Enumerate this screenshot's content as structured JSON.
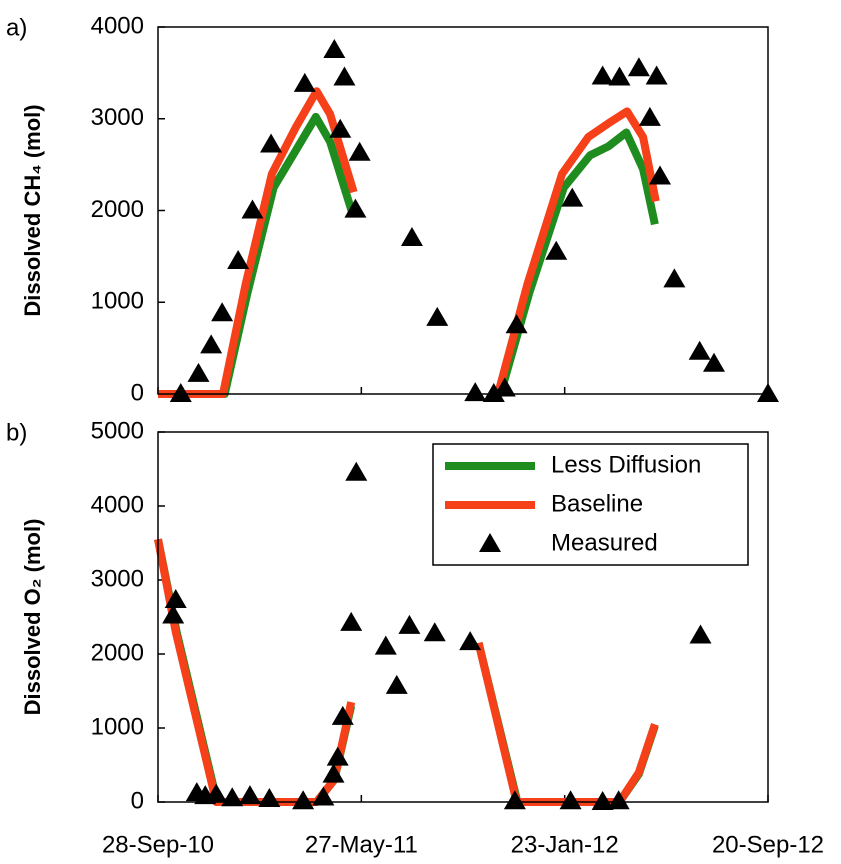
{
  "chart_data": [
    {
      "type": "line",
      "panel_label": "a)",
      "ylabel": "Dissolved CH₄ (mol)",
      "xlim": [
        "2010-09-28",
        "2012-09-20"
      ],
      "xticks": [
        "2010-09-28",
        "2011-05-27",
        "2012-01-23",
        "2012-09-20"
      ],
      "ylim": [
        0,
        4000
      ],
      "yticks": [
        0,
        1000,
        2000,
        3000,
        4000
      ],
      "legend": false,
      "series": [
        {
          "name": "Less Diffusion",
          "color": "#1e8c1e",
          "mode": "line",
          "x": [
            "2010-09-28",
            "2010-12-16",
            "2011-01-12",
            "2011-02-12",
            "2011-03-10",
            "2011-04-03",
            "2011-04-20",
            "2011-05-17",
            null,
            "2011-11-08",
            "2011-12-12",
            "2012-01-22",
            "2012-02-22",
            "2012-03-15",
            "2012-04-05",
            "2012-04-25",
            "2012-05-09"
          ],
          "values": [
            0,
            0,
            1100,
            2250,
            2650,
            3020,
            2750,
            1950,
            null,
            0,
            1100,
            2250,
            2600,
            2700,
            2850,
            2450,
            1850
          ]
        },
        {
          "name": "Baseline",
          "color": "#f5401a",
          "mode": "line",
          "x": [
            "2010-09-28",
            "2010-12-14",
            "2011-01-10",
            "2011-02-10",
            "2011-03-10",
            "2011-04-04",
            "2011-04-20",
            "2011-05-18",
            null,
            "2011-11-05",
            "2011-12-10",
            "2012-01-20",
            "2012-02-20",
            "2012-03-15",
            "2012-04-06",
            "2012-04-25",
            "2012-05-10"
          ],
          "values": [
            0,
            0,
            1200,
            2400,
            2900,
            3300,
            3050,
            2200,
            null,
            0,
            1200,
            2400,
            2800,
            2950,
            3080,
            2800,
            2100
          ]
        },
        {
          "name": "Measured",
          "color": "#000000",
          "mode": "markers",
          "x": [
            "2010-10-25",
            "2010-11-15",
            "2010-11-30",
            "2010-12-13",
            "2011-01-01",
            "2011-01-18",
            "2011-02-09",
            "2011-03-21",
            "2011-04-25",
            "2011-05-02",
            "2011-05-07",
            "2011-05-25",
            "2011-05-20",
            "2011-07-26",
            "2011-08-25",
            "2011-10-09",
            "2011-10-31",
            "2011-11-13",
            "2011-11-27",
            "2012-01-13",
            "2012-02-01",
            "2012-03-08",
            "2012-03-28",
            "2012-04-20",
            "2012-05-03",
            "2012-05-11",
            "2012-05-15",
            "2012-06-01",
            "2012-07-01",
            "2012-07-18",
            "2012-09-20"
          ],
          "values": [
            0,
            220,
            530,
            880,
            1450,
            2000,
            2720,
            3380,
            3750,
            2880,
            3450,
            2630,
            2010,
            1700,
            830,
            10,
            0,
            60,
            750,
            1550,
            2130,
            3460,
            3450,
            3550,
            3010,
            3460,
            2370,
            1250,
            460,
            330,
            0
          ]
        }
      ]
    },
    {
      "type": "line",
      "panel_label": "b)",
      "ylabel": "Dissolved O₂ (mol)",
      "xlim": [
        "2010-09-28",
        "2012-09-20"
      ],
      "xticks": [
        {
          "value": "2010-09-28",
          "label": "28-Sep-10"
        },
        {
          "value": "2011-05-27",
          "label": "27-May-11"
        },
        {
          "value": "2012-01-23",
          "label": "23-Jan-12"
        },
        {
          "value": "2012-09-20",
          "label": "20-Sep-12"
        }
      ],
      "ylim": [
        0,
        5000
      ],
      "yticks": [
        0,
        1000,
        2000,
        3000,
        4000,
        5000
      ],
      "legend": "upper right",
      "series": [
        {
          "name": "Less Diffusion",
          "color": "#1e8c1e",
          "mode": "line",
          "x": [
            "2010-09-28",
            "2010-10-20",
            "2010-12-07",
            "2011-04-04",
            "2011-04-25",
            "2011-05-15",
            null,
            "2011-10-13",
            "2011-11-28",
            "2012-03-28",
            "2012-04-20",
            "2012-05-09"
          ],
          "values": [
            3550,
            2300,
            0,
            0,
            300,
            1300,
            null,
            2150,
            0,
            0,
            380,
            1030
          ]
        },
        {
          "name": "Baseline",
          "color": "#f5401a",
          "mode": "line",
          "x": [
            "2010-09-28",
            "2010-10-19",
            "2010-12-06",
            "2011-04-04",
            "2011-04-25",
            "2011-05-15",
            null,
            "2011-10-13",
            "2011-11-27",
            "2012-03-28",
            "2012-04-20",
            "2012-05-09"
          ],
          "values": [
            3550,
            2300,
            0,
            0,
            300,
            1350,
            null,
            2150,
            0,
            0,
            400,
            1050
          ]
        },
        {
          "name": "Measured",
          "color": "#000000",
          "mode": "markers",
          "x": [
            "2010-10-16",
            "2010-10-19",
            "2010-11-13",
            "2010-11-23",
            "2010-12-06",
            "2010-12-25",
            "2011-01-15",
            "2011-02-07",
            "2011-03-19",
            "2011-04-12",
            "2011-04-24",
            "2011-04-29",
            "2011-05-05",
            "2011-05-15",
            "2011-05-21",
            "2011-06-25",
            "2011-07-08",
            "2011-07-23",
            "2011-08-22",
            "2011-10-03",
            "2011-11-25",
            "2012-01-30",
            "2012-03-08",
            "2012-03-27",
            "2012-07-02"
          ],
          "values": [
            2520,
            2730,
            120,
            80,
            100,
            50,
            80,
            40,
            10,
            60,
            370,
            600,
            1150,
            2420,
            4450,
            2100,
            1570,
            2380,
            2280,
            2160,
            10,
            10,
            0,
            10,
            2250
          ]
        }
      ]
    }
  ]
}
